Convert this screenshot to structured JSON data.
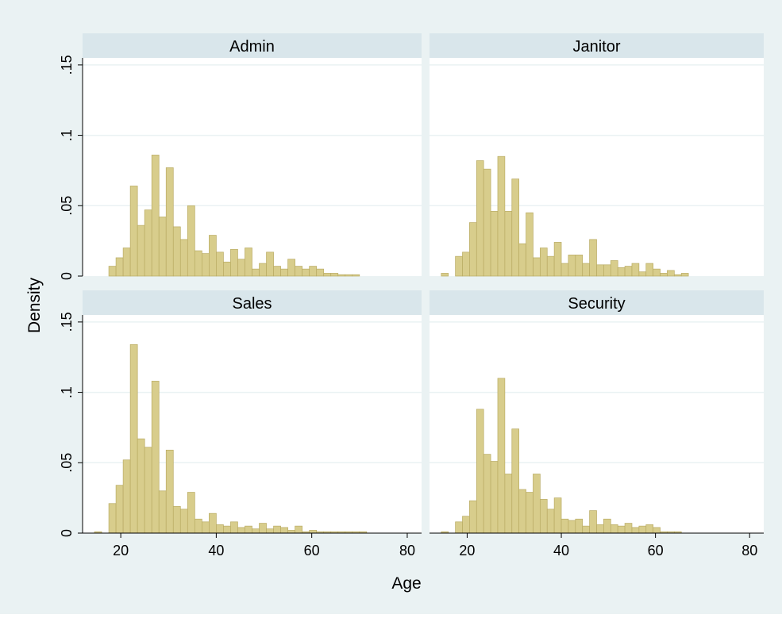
{
  "colors": {
    "outer_background": "#eaf2f3",
    "plot_background": "#ffffff",
    "strip_background": "#d9e6eb",
    "bar_fill": "#d8cd8c",
    "bar_stroke": "#b9ab63",
    "grid": "#eaf2f3",
    "axis": "#000000"
  },
  "chart_data": {
    "type": "bar",
    "subtype": "histogram",
    "layout": "2x2 facets",
    "xlabel": "Age",
    "ylabel": "Density",
    "xlim": [
      12,
      83
    ],
    "ylim": [
      0,
      0.155
    ],
    "x_ticks": [
      20,
      40,
      60,
      80
    ],
    "x_tick_labels": [
      "20",
      "40",
      "60",
      "80"
    ],
    "y_ticks": [
      0,
      0.05,
      0.1,
      0.15
    ],
    "y_tick_labels": [
      "0",
      ".05",
      ".1",
      ".15"
    ],
    "grid": true,
    "bin_width": 1.5,
    "panels": [
      {
        "title": "Admin",
        "bins": [
          [
            17.5,
            0.007
          ],
          [
            19.0,
            0.013
          ],
          [
            20.5,
            0.02
          ],
          [
            22.0,
            0.064
          ],
          [
            23.5,
            0.036
          ],
          [
            25.0,
            0.047
          ],
          [
            26.5,
            0.086
          ],
          [
            28.0,
            0.042
          ],
          [
            29.5,
            0.077
          ],
          [
            31.0,
            0.035
          ],
          [
            32.5,
            0.026
          ],
          [
            34.0,
            0.05
          ],
          [
            35.5,
            0.018
          ],
          [
            37.0,
            0.016
          ],
          [
            38.5,
            0.029
          ],
          [
            40.0,
            0.017
          ],
          [
            41.5,
            0.01
          ],
          [
            43.0,
            0.019
          ],
          [
            44.5,
            0.012
          ],
          [
            46.0,
            0.02
          ],
          [
            47.5,
            0.005
          ],
          [
            49.0,
            0.009
          ],
          [
            50.5,
            0.017
          ],
          [
            52.0,
            0.007
          ],
          [
            53.5,
            0.005
          ],
          [
            55.0,
            0.012
          ],
          [
            56.5,
            0.007
          ],
          [
            58.0,
            0.005
          ],
          [
            59.5,
            0.007
          ],
          [
            61.0,
            0.005
          ],
          [
            62.5,
            0.002
          ],
          [
            64.0,
            0.002
          ],
          [
            65.5,
            0.001
          ],
          [
            67.0,
            0.001
          ],
          [
            68.5,
            0.001
          ]
        ]
      },
      {
        "title": "Janitor",
        "bins": [
          [
            14.5,
            0.002
          ],
          [
            17.5,
            0.014
          ],
          [
            19.0,
            0.017
          ],
          [
            20.5,
            0.038
          ],
          [
            22.0,
            0.082
          ],
          [
            23.5,
            0.076
          ],
          [
            25.0,
            0.046
          ],
          [
            26.5,
            0.085
          ],
          [
            28.0,
            0.046
          ],
          [
            29.5,
            0.069
          ],
          [
            31.0,
            0.023
          ],
          [
            32.5,
            0.045
          ],
          [
            34.0,
            0.013
          ],
          [
            35.5,
            0.02
          ],
          [
            37.0,
            0.014
          ],
          [
            38.5,
            0.024
          ],
          [
            40.0,
            0.009
          ],
          [
            41.5,
            0.015
          ],
          [
            43.0,
            0.015
          ],
          [
            44.5,
            0.009
          ],
          [
            46.0,
            0.026
          ],
          [
            47.5,
            0.008
          ],
          [
            49.0,
            0.008
          ],
          [
            50.5,
            0.011
          ],
          [
            52.0,
            0.006
          ],
          [
            53.5,
            0.007
          ],
          [
            55.0,
            0.009
          ],
          [
            56.5,
            0.003
          ],
          [
            58.0,
            0.009
          ],
          [
            59.5,
            0.005
          ],
          [
            61.0,
            0.002
          ],
          [
            62.5,
            0.004
          ],
          [
            64.0,
            0.001
          ],
          [
            65.5,
            0.002
          ]
        ]
      },
      {
        "title": "Sales",
        "bins": [
          [
            14.5,
            0.001
          ],
          [
            17.5,
            0.021
          ],
          [
            19.0,
            0.034
          ],
          [
            20.5,
            0.052
          ],
          [
            22.0,
            0.134
          ],
          [
            23.5,
            0.067
          ],
          [
            25.0,
            0.061
          ],
          [
            26.5,
            0.108
          ],
          [
            28.0,
            0.03
          ],
          [
            29.5,
            0.059
          ],
          [
            31.0,
            0.019
          ],
          [
            32.5,
            0.017
          ],
          [
            34.0,
            0.029
          ],
          [
            35.5,
            0.01
          ],
          [
            37.0,
            0.008
          ],
          [
            38.5,
            0.014
          ],
          [
            40.0,
            0.006
          ],
          [
            41.5,
            0.005
          ],
          [
            43.0,
            0.008
          ],
          [
            44.5,
            0.004
          ],
          [
            46.0,
            0.005
          ],
          [
            47.5,
            0.003
          ],
          [
            49.0,
            0.007
          ],
          [
            50.5,
            0.003
          ],
          [
            52.0,
            0.005
          ],
          [
            53.5,
            0.004
          ],
          [
            55.0,
            0.002
          ],
          [
            56.5,
            0.005
          ],
          [
            58.0,
            0.001
          ],
          [
            59.5,
            0.002
          ],
          [
            61.0,
            0.001
          ],
          [
            62.5,
            0.001
          ],
          [
            64.0,
            0.001
          ],
          [
            65.5,
            0.001
          ],
          [
            67.0,
            0.001
          ],
          [
            68.5,
            0.001
          ],
          [
            70.0,
            0.001
          ]
        ]
      },
      {
        "title": "Security",
        "bins": [
          [
            14.5,
            0.001
          ],
          [
            17.5,
            0.008
          ],
          [
            19.0,
            0.012
          ],
          [
            20.5,
            0.023
          ],
          [
            22.0,
            0.088
          ],
          [
            23.5,
            0.056
          ],
          [
            25.0,
            0.051
          ],
          [
            26.5,
            0.11
          ],
          [
            28.0,
            0.042
          ],
          [
            29.5,
            0.074
          ],
          [
            31.0,
            0.031
          ],
          [
            32.5,
            0.029
          ],
          [
            34.0,
            0.042
          ],
          [
            35.5,
            0.024
          ],
          [
            37.0,
            0.017
          ],
          [
            38.5,
            0.025
          ],
          [
            40.0,
            0.01
          ],
          [
            41.5,
            0.009
          ],
          [
            43.0,
            0.01
          ],
          [
            44.5,
            0.005
          ],
          [
            46.0,
            0.016
          ],
          [
            47.5,
            0.006
          ],
          [
            49.0,
            0.01
          ],
          [
            50.5,
            0.006
          ],
          [
            52.0,
            0.005
          ],
          [
            53.5,
            0.007
          ],
          [
            55.0,
            0.004
          ],
          [
            56.5,
            0.005
          ],
          [
            58.0,
            0.006
          ],
          [
            59.5,
            0.004
          ],
          [
            61.0,
            0.001
          ],
          [
            62.5,
            0.001
          ],
          [
            64.0,
            0.001
          ]
        ]
      }
    ]
  }
}
